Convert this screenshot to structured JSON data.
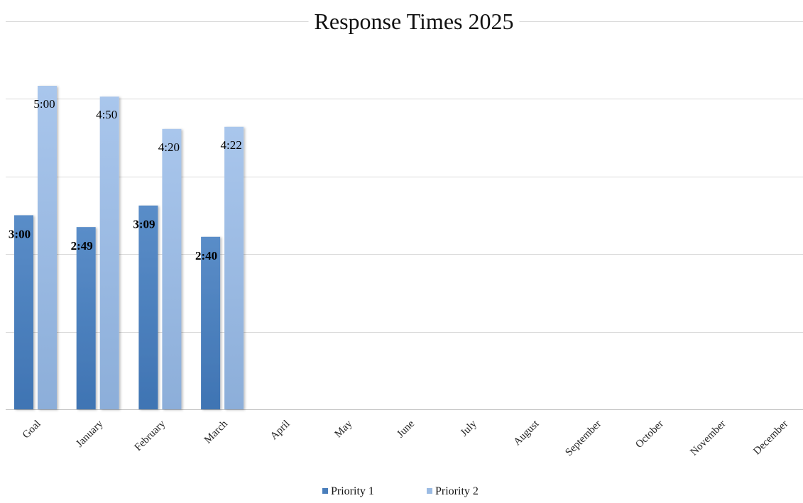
{
  "chart_data": {
    "type": "bar",
    "title": "Response Times 2025",
    "xlabel": "",
    "ylabel": "",
    "categories": [
      "Goal",
      "January",
      "February",
      "March",
      "April",
      "May",
      "June",
      "July",
      "August",
      "September",
      "October",
      "November",
      "December"
    ],
    "series": [
      {
        "name": "Priority 1",
        "color": "#4a7ebb",
        "values": [
          180,
          169,
          189,
          160,
          null,
          null,
          null,
          null,
          null,
          null,
          null,
          null,
          null
        ],
        "labels": [
          "3:00",
          "2:49",
          "3:09",
          "2:40",
          "",
          "",
          "",
          "",
          "",
          "",
          "",
          "",
          ""
        ]
      },
      {
        "name": "Priority 2",
        "color": "#9bbbe3",
        "values": [
          300,
          290,
          260,
          262,
          null,
          null,
          null,
          null,
          null,
          null,
          null,
          null,
          null
        ],
        "labels": [
          "5:00",
          "4:50",
          "4:20",
          "4:22",
          "",
          "",
          "",
          "",
          "",
          "",
          "",
          "",
          ""
        ]
      }
    ],
    "value_unit": "seconds",
    "ylim": [
      0,
      360
    ],
    "y_gridline_values": [
      0,
      72,
      144,
      216,
      288,
      360
    ],
    "y_tick_labels_visible": false,
    "grid": true,
    "legend": "bottom-center"
  }
}
